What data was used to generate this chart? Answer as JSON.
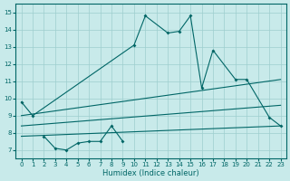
{
  "xlabel": "Humidex (Indice chaleur)",
  "bg_color": "#c8eaea",
  "grid_color": "#9ecece",
  "line_color": "#006666",
  "x_ticks": [
    0,
    1,
    2,
    3,
    4,
    5,
    6,
    7,
    8,
    9,
    10,
    11,
    12,
    13,
    14,
    15,
    16,
    17,
    18,
    19,
    20,
    21,
    22,
    23
  ],
  "xlim": [
    -0.5,
    23.5
  ],
  "ylim": [
    6.5,
    15.5
  ],
  "y_ticks": [
    7,
    8,
    9,
    10,
    11,
    12,
    13,
    14,
    15
  ],
  "series": [
    {
      "x": [
        0,
        1,
        10,
        11,
        13,
        14,
        15,
        16,
        17,
        19,
        20,
        22,
        23
      ],
      "y": [
        9.8,
        9.0,
        13.1,
        14.8,
        13.8,
        13.9,
        14.8,
        10.6,
        12.8,
        11.1,
        11.1,
        8.9,
        8.4
      ],
      "with_markers": true,
      "connected": true
    },
    {
      "x": [
        2,
        3,
        4,
        5,
        6,
        7,
        8,
        9
      ],
      "y": [
        7.8,
        7.1,
        7.0,
        7.4,
        7.5,
        7.5,
        8.4,
        7.5
      ],
      "with_markers": true,
      "connected": true
    },
    {
      "x": [
        0,
        23
      ],
      "y": [
        7.8,
        8.4
      ],
      "with_markers": false
    },
    {
      "x": [
        0,
        23
      ],
      "y": [
        8.4,
        9.6
      ],
      "with_markers": false
    },
    {
      "x": [
        0,
        23
      ],
      "y": [
        9.0,
        11.1
      ],
      "with_markers": false
    }
  ]
}
